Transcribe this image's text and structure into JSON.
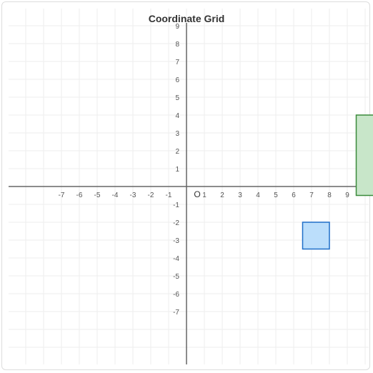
{
  "title": "Coordinate Grid",
  "origin_label": "O",
  "chart_data": {
    "type": "scatter",
    "title": "Coordinate Grid",
    "xlim": [
      -10,
      10
    ],
    "ylim": [
      -10,
      9
    ],
    "grid": true,
    "x_tick_labels": [
      "-7",
      "-6",
      "-5",
      "-4",
      "-3",
      "-2",
      "-1",
      "1",
      "2",
      "3",
      "4",
      "5",
      "6",
      "7",
      "8",
      "9"
    ],
    "y_tick_labels": [
      "9",
      "8",
      "7",
      "6",
      "5",
      "4",
      "3",
      "2",
      "1",
      "-1",
      "-2",
      "-3",
      "-4",
      "-5",
      "-6",
      "-7"
    ],
    "shapes": [
      {
        "name": "blue-rectangle",
        "x": [
          6.5,
          8
        ],
        "y": [
          -3.5,
          -2
        ],
        "fill": "#bbdefb",
        "stroke": "#1e6fc8"
      },
      {
        "name": "green-rectangle",
        "x": [
          9.5,
          10.5
        ],
        "y": [
          -0.5,
          4
        ],
        "fill": "#c8e6c9",
        "stroke": "#3a8a3a"
      }
    ]
  }
}
